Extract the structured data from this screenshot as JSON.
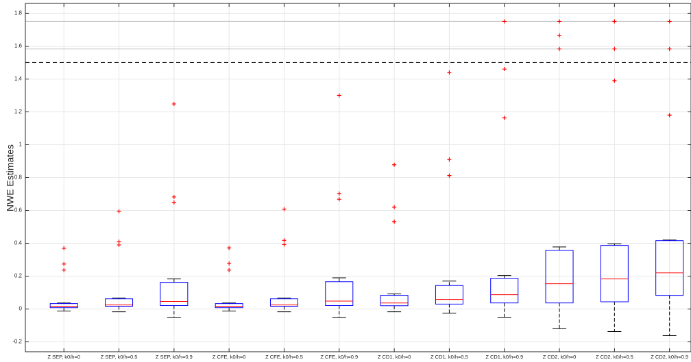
{
  "chart_data": {
    "type": "box",
    "ylabel": "NWE Estimates",
    "categories": [
      "Z SEP, k0/h=0",
      "Z SEP, k0/h=0.5",
      "Z SEP, k0/h=0.9",
      "Z CFE, k0/h=0",
      "Z CFE, k0/h=0.5",
      "Z CFE, k0/h=0.9",
      "Z CD1, k0/h=0",
      "Z CD1, k0/h=0.5",
      "Z CD1, k0/h=0.9",
      "Z CD2, k0/h=0",
      "Z CD2, k0/h=0.5",
      "Z CD2, k0/h=0.9"
    ],
    "boxes": [
      {
        "whisker_low": -0.012,
        "q1": 0.008,
        "median": 0.017,
        "q3": 0.033,
        "whisker_high": 0.037,
        "outliers": [
          0.37,
          0.274,
          0.237
        ]
      },
      {
        "whisker_low": -0.017,
        "q1": 0.017,
        "median": 0.025,
        "q3": 0.062,
        "whisker_high": 0.067,
        "outliers": [
          0.595,
          0.41,
          0.39
        ]
      },
      {
        "whisker_low": -0.05,
        "q1": 0.021,
        "median": 0.046,
        "q3": 0.162,
        "whisker_high": 0.183,
        "outliers": [
          1.248,
          0.682,
          0.649
        ]
      },
      {
        "whisker_low": -0.012,
        "q1": 0.008,
        "median": 0.017,
        "q3": 0.033,
        "whisker_high": 0.037,
        "outliers": [
          0.372,
          0.277,
          0.237
        ]
      },
      {
        "whisker_low": -0.017,
        "q1": 0.017,
        "median": 0.025,
        "q3": 0.062,
        "whisker_high": 0.067,
        "outliers": [
          0.608,
          0.418,
          0.392
        ]
      },
      {
        "whisker_low": -0.05,
        "q1": 0.021,
        "median": 0.048,
        "q3": 0.166,
        "whisker_high": 0.19,
        "outliers": [
          1.3,
          0.703,
          0.668
        ]
      },
      {
        "whisker_low": -0.017,
        "q1": 0.02,
        "median": 0.037,
        "q3": 0.083,
        "whisker_high": 0.092,
        "outliers": [
          0.878,
          0.62,
          0.532
        ]
      },
      {
        "whisker_low": -0.025,
        "q1": 0.03,
        "median": 0.058,
        "q3": 0.143,
        "whisker_high": 0.17,
        "outliers": [
          1.44,
          0.91,
          0.812
        ]
      },
      {
        "whisker_low": -0.05,
        "q1": 0.037,
        "median": 0.087,
        "q3": 0.187,
        "whisker_high": 0.204,
        "outliers": [
          1.75,
          1.46,
          1.164
        ]
      },
      {
        "whisker_low": -0.12,
        "q1": 0.037,
        "median": 0.154,
        "q3": 0.357,
        "whisker_high": 0.378,
        "outliers": [
          1.75,
          1.666,
          1.583
        ]
      },
      {
        "whisker_low": -0.137,
        "q1": 0.044,
        "median": 0.183,
        "q3": 0.387,
        "whisker_high": 0.397,
        "outliers": [
          1.75,
          1.583,
          1.39
        ]
      },
      {
        "whisker_low": -0.162,
        "q1": 0.083,
        "median": 0.22,
        "q3": 0.416,
        "whisker_high": 0.42,
        "outliers": [
          1.75,
          1.583,
          1.18
        ]
      }
    ],
    "box_color": "#0000ff",
    "median_color": "#ff0000",
    "outlier_color": "#ff0000",
    "whisker_color": "#000000",
    "reference_lines": [
      {
        "value": 1.75,
        "color": "#c8c8c8",
        "dash": "solid"
      },
      {
        "value": 1.583,
        "color": "#c8c8c8",
        "dash": "solid"
      },
      {
        "value": 1.5,
        "color": "#000000",
        "dash": "dashed"
      }
    ],
    "xlim": [
      0.3,
      12.39
    ],
    "ylim": [
      -0.26,
      1.86
    ],
    "yticks": [
      -0.2,
      0,
      0.2,
      0.4,
      0.6,
      0.8,
      1,
      1.2,
      1.4,
      1.6,
      1.8
    ],
    "grid": true
  }
}
